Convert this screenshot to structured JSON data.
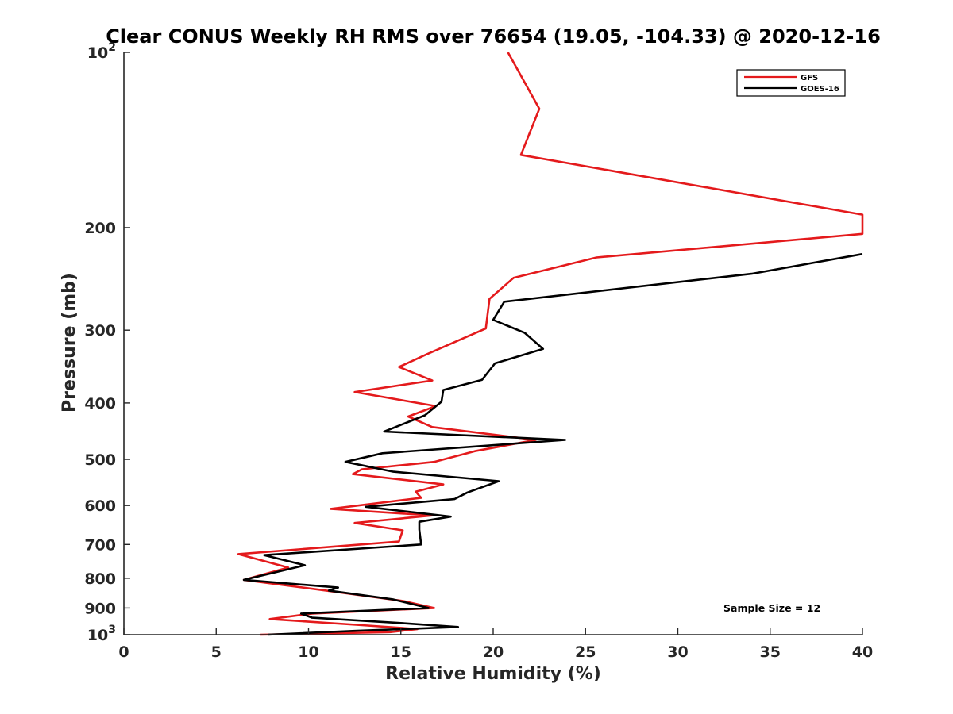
{
  "chart_data": {
    "type": "line",
    "title": "Clear CONUS Weekly RH RMS over 76654 (19.05, -104.33) @ 2020-12-16",
    "xlabel": "Relative Humidity (%)",
    "ylabel": "Pressure (mb)",
    "xlim": [
      0,
      40
    ],
    "ylim": [
      100,
      1000
    ],
    "y_scale": "log",
    "y_reversed": true,
    "x_ticks": [
      "0",
      "5",
      "10",
      "15",
      "20",
      "25",
      "30",
      "35",
      "40"
    ],
    "y_ticks": [
      {
        "value": 100,
        "label": "10",
        "sup": "2"
      },
      {
        "value": 200,
        "label": "200",
        "sup": ""
      },
      {
        "value": 300,
        "label": "300",
        "sup": ""
      },
      {
        "value": 400,
        "label": "400",
        "sup": ""
      },
      {
        "value": 500,
        "label": "500",
        "sup": ""
      },
      {
        "value": 600,
        "label": "600",
        "sup": ""
      },
      {
        "value": 700,
        "label": "700",
        "sup": ""
      },
      {
        "value": 800,
        "label": "800",
        "sup": ""
      },
      {
        "value": 900,
        "label": "900",
        "sup": ""
      },
      {
        "value": 1000,
        "label": "10",
        "sup": "3"
      }
    ],
    "legend_position": "top-right",
    "series": [
      {
        "name": "GFS",
        "color": "#e41a1c",
        "points": [
          [
            20.8,
            100
          ],
          [
            22.5,
            125
          ],
          [
            21.5,
            150
          ],
          [
            40,
            190
          ],
          [
            40,
            205
          ],
          [
            25.6,
            225
          ],
          [
            21.1,
            244
          ],
          [
            19.8,
            265
          ],
          [
            19.6,
            298
          ],
          [
            16.4,
            330
          ],
          [
            14.9,
            347
          ],
          [
            16.7,
            366
          ],
          [
            12.5,
            383
          ],
          [
            16.9,
            405
          ],
          [
            15.4,
            422
          ],
          [
            16.7,
            440
          ],
          [
            22.3,
            463
          ],
          [
            19.0,
            484
          ],
          [
            16.8,
            505
          ],
          [
            12.9,
            520
          ],
          [
            12.4,
            530
          ],
          [
            17.3,
            552
          ],
          [
            15.8,
            568
          ],
          [
            16.1,
            582
          ],
          [
            11.2,
            608
          ],
          [
            16.7,
            624
          ],
          [
            12.5,
            643
          ],
          [
            15.1,
            662
          ],
          [
            14.9,
            692
          ],
          [
            6.2,
            727
          ],
          [
            8.9,
            767
          ],
          [
            6.5,
            805
          ],
          [
            11.2,
            842
          ],
          [
            15.1,
            875
          ],
          [
            16.8,
            900
          ],
          [
            10.2,
            920
          ],
          [
            7.9,
            940
          ],
          [
            12.9,
            963
          ],
          [
            15.9,
            978
          ],
          [
            14.4,
            990
          ],
          [
            7.4,
            1000
          ]
        ]
      },
      {
        "name": "GOES-16",
        "color": "#000000",
        "points": [
          [
            40,
            222
          ],
          [
            34.0,
            240
          ],
          [
            20.6,
            268
          ],
          [
            20.0,
            288
          ],
          [
            21.7,
            303
          ],
          [
            22.7,
            323
          ],
          [
            20.1,
            342
          ],
          [
            19.4,
            365
          ],
          [
            17.3,
            380
          ],
          [
            17.2,
            398
          ],
          [
            16.3,
            420
          ],
          [
            14.1,
            448
          ],
          [
            23.9,
            463
          ],
          [
            14.0,
            488
          ],
          [
            12.0,
            505
          ],
          [
            14.6,
            525
          ],
          [
            20.3,
            545
          ],
          [
            18.6,
            570
          ],
          [
            17.9,
            585
          ],
          [
            13.1,
            603
          ],
          [
            17.7,
            627
          ],
          [
            16.0,
            640
          ],
          [
            16.0,
            660
          ],
          [
            16.1,
            700
          ],
          [
            7.6,
            730
          ],
          [
            9.8,
            760
          ],
          [
            6.5,
            805
          ],
          [
            11.6,
            830
          ],
          [
            11.1,
            840
          ],
          [
            14.6,
            870
          ],
          [
            16.5,
            900
          ],
          [
            9.6,
            920
          ],
          [
            10.2,
            935
          ],
          [
            15.0,
            955
          ],
          [
            18.1,
            970
          ],
          [
            12.5,
            985
          ],
          [
            7.8,
            1000
          ]
        ]
      }
    ],
    "annotation": "Sample Size = 12"
  }
}
